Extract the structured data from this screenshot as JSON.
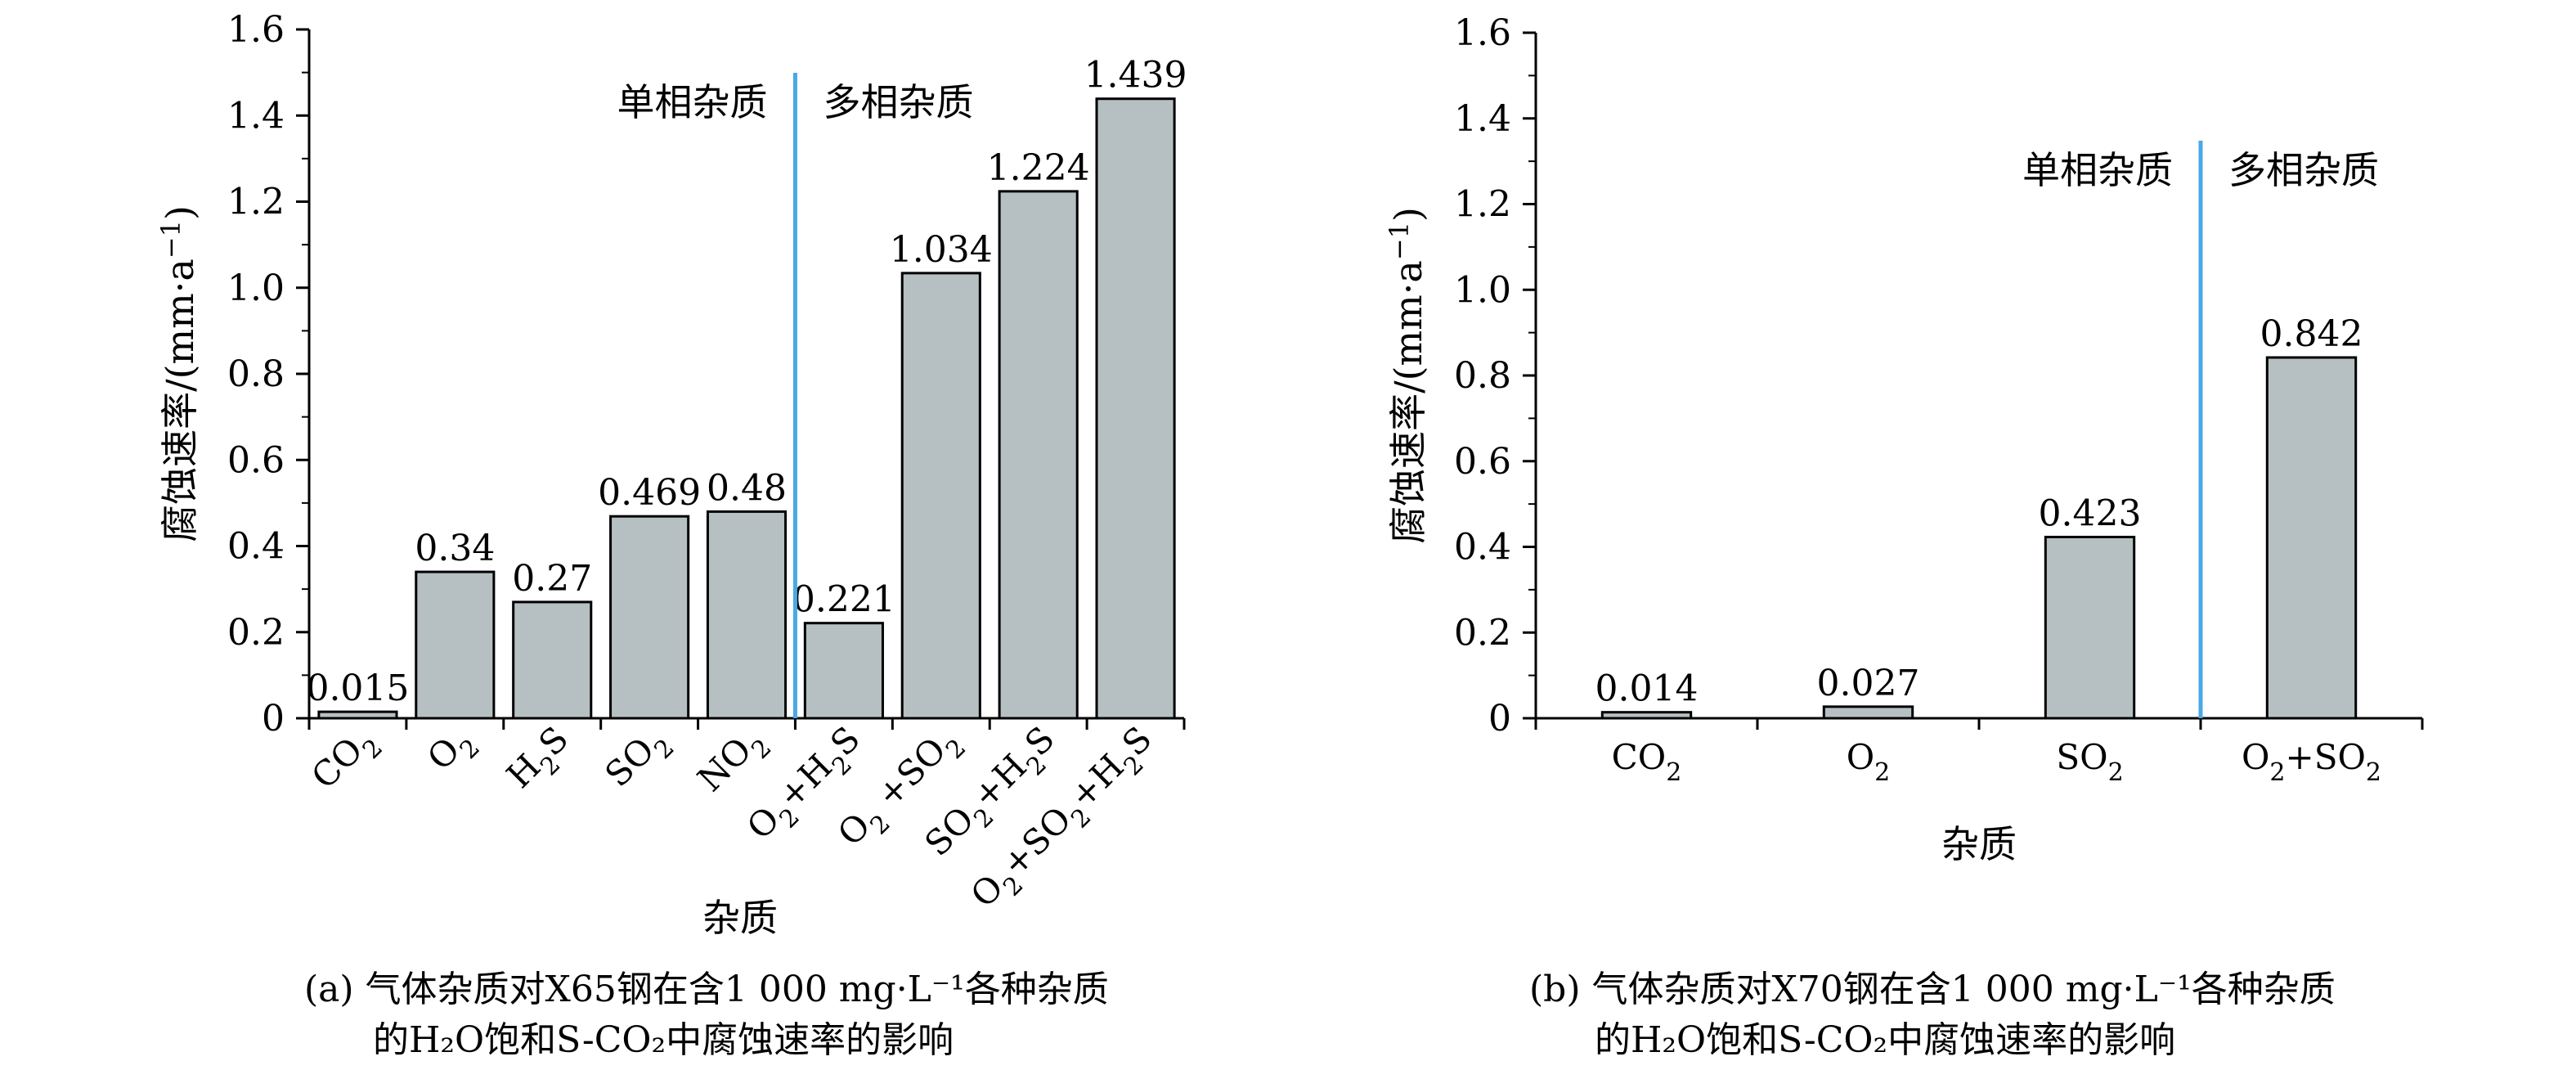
{
  "chart_data": [
    {
      "type": "bar",
      "panel": "(a)",
      "categories": [
        "CO2",
        "O2",
        "H2S",
        "SO2",
        "NO2",
        "O2+H2S",
        "O2 +SO2",
        "SO2+H2S",
        "O2+SO2+H2S"
      ],
      "values": [
        0.015,
        0.34,
        0.27,
        0.469,
        0.48,
        0.221,
        1.034,
        1.224,
        1.439
      ],
      "value_labels": [
        "0.015",
        "0.34",
        "0.27",
        "0.469",
        "0.48",
        "0.221",
        "1.034",
        "1.224",
        "1.439"
      ],
      "xlabel": "杂质",
      "ylabel": "腐蚀速率/(mm·a",
      "ylabel_sup": "−1",
      "ylabel_end": ")",
      "ylim": [
        0,
        1.6
      ],
      "yticks": [
        "0",
        "0.2",
        "0.4",
        "0.6",
        "0.8",
        "1.0",
        "1.2",
        "1.4",
        "1.6"
      ],
      "divider_after_index": 4,
      "annotation_left": "单相杂质",
      "annotation_right": "多相杂质",
      "x_tick_rotation": "rotated",
      "caption_line1": "(a) 气体杂质对X65钢在含1 000 mg·L⁻¹各种杂质",
      "caption_line2": "的H₂O饱和S-CO₂中腐蚀速率的影响"
    },
    {
      "type": "bar",
      "panel": "(b)",
      "categories": [
        "CO2",
        "O2",
        "SO2",
        "O2+SO2"
      ],
      "values": [
        0.014,
        0.027,
        0.423,
        0.842
      ],
      "value_labels": [
        "0.014",
        "0.027",
        "0.423",
        "0.842"
      ],
      "xlabel": "杂质",
      "ylabel": "腐蚀速率/(mm·a",
      "ylabel_sup": "−1",
      "ylabel_end": ")",
      "ylim": [
        0,
        1.6
      ],
      "yticks": [
        "0",
        "0.2",
        "0.4",
        "0.6",
        "0.8",
        "1.0",
        "1.2",
        "1.4",
        "1.6"
      ],
      "divider_after_index": 2,
      "annotation_left": "单相杂质",
      "annotation_right": "多相杂质",
      "x_tick_rotation": "horizontal",
      "caption_line1": "(b) 气体杂质对X70钢在含1 000 mg·L⁻¹各种杂质",
      "caption_line2": "的H₂O饱和S-CO₂中腐蚀速率的影响"
    }
  ],
  "colors": {
    "bar_fill": "#b6bfc2",
    "bar_stroke": "#000000",
    "divider": "#4aa8e8",
    "axis": "#000000"
  }
}
